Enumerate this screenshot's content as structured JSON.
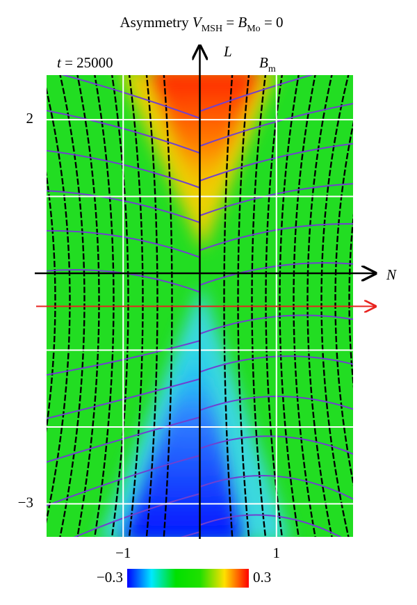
{
  "chart_data": {
    "type": "heatmap",
    "title_parts": [
      "Asymmetry ",
      "V",
      "MSH",
      " = ",
      "B",
      "Mo",
      " = 0"
    ],
    "annotation_parts": [
      "t",
      " = 25000"
    ],
    "field_label_parts": [
      "B",
      "m"
    ],
    "x_label": "N",
    "y_label": "L",
    "xlim": [
      -2,
      2
    ],
    "ylim": [
      -3.43,
      2.58
    ],
    "xticks": [
      {
        "value": -1,
        "label": "−1"
      },
      1
    ],
    "yticks": [
      {
        "value": -3,
        "label": "−3"
      },
      2
    ],
    "grid": true,
    "grid_x": [
      -1,
      0,
      1
    ],
    "grid_y": [
      -3,
      -2,
      -1,
      0,
      1,
      2
    ],
    "cut_line": {
      "L": -0.43,
      "color": "#e8231f"
    },
    "colorbar": {
      "ticks": [
        {
          "value": -0.3,
          "label": "−0.3"
        },
        0.3
      ],
      "colors": [
        "#0000ff",
        "#00e8ff",
        "#00e000",
        "#20e000",
        "#ffe000",
        "#ff0000"
      ]
    }
  }
}
